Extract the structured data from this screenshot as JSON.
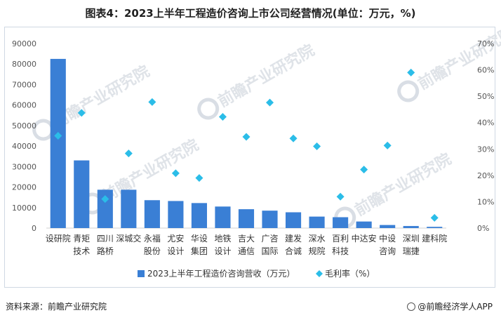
{
  "chart_data": {
    "type": "bar",
    "title": "图表4：2023上半年工程造价咨询上市公司经营情况(单位：万元，%)",
    "categories": [
      [
        "设研院"
      ],
      [
        "青矩",
        "技术"
      ],
      [
        "四川",
        "路桥"
      ],
      [
        "深城交"
      ],
      [
        "永福",
        "股份"
      ],
      [
        "尤安",
        "设计"
      ],
      [
        "华设",
        "集团"
      ],
      [
        "地铁",
        "设计"
      ],
      [
        "吉大",
        "通信"
      ],
      [
        "广咨",
        "国际"
      ],
      [
        "建发",
        "合诚"
      ],
      [
        "深水",
        "规院"
      ],
      [
        "百利",
        "科技"
      ],
      [
        "中达安"
      ],
      [
        "中设",
        "咨询"
      ],
      [
        "深圳",
        "瑞捷"
      ],
      [
        "建科院"
      ]
    ],
    "series": [
      {
        "name": "2023上半年工程造价咨询营收（万元）",
        "type": "bar",
        "axis": "left",
        "color": "#3a7fd5",
        "values": [
          82500,
          33000,
          18700,
          18700,
          13600,
          13200,
          12200,
          10500,
          9200,
          8500,
          7700,
          5600,
          5300,
          3200,
          1500,
          1000,
          600
        ]
      },
      {
        "name": "毛利率（%）",
        "type": "scatter",
        "axis": "right",
        "color": "#2bbde8",
        "values": [
          35,
          43.7,
          11,
          28.3,
          47.8,
          20.8,
          19,
          42.2,
          34.6,
          47.6,
          34,
          31,
          11.9,
          22.2,
          31.3,
          59,
          3.9
        ]
      }
    ],
    "y_left": {
      "min": 0,
      "max": 90000,
      "step": 10000,
      "ticks": [
        "0",
        "10000",
        "20000",
        "30000",
        "40000",
        "50000",
        "60000",
        "70000",
        "80000",
        "90000"
      ]
    },
    "y_right": {
      "min": 0,
      "max": 70,
      "step": 10,
      "ticks": [
        "0%",
        "10%",
        "20%",
        "30%",
        "40%",
        "50%",
        "60%",
        "70%"
      ]
    },
    "legend_position": "bottom",
    "watermark": "前瞻产业研究院"
  },
  "footer": {
    "source": "资料来源：前瞻产业研究院",
    "brand": "@前瞻经济学人APP"
  }
}
